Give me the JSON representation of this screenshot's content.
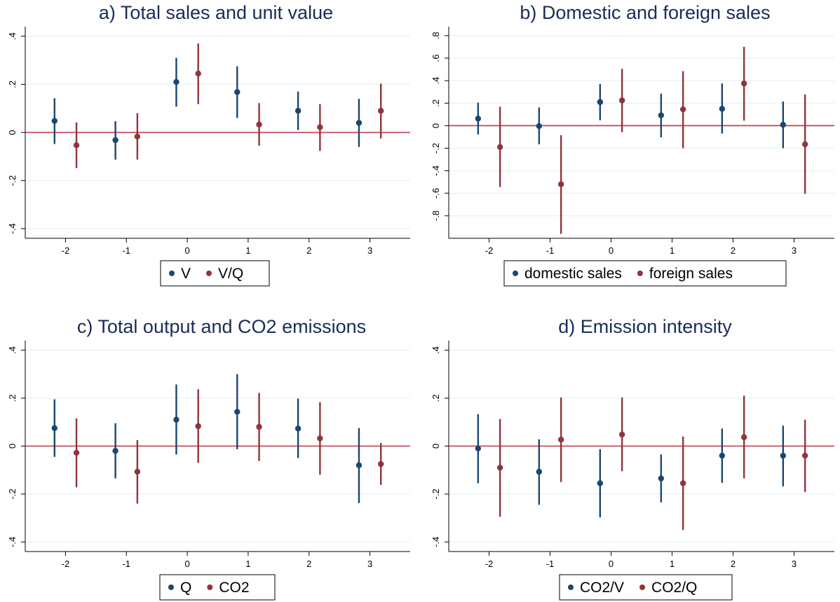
{
  "chart_data": [
    {
      "type": "scatter",
      "title": "a) Total sales and unit value",
      "xlabel": "",
      "ylabel": "",
      "x_ticks": [
        "-2",
        "-1",
        "0",
        "1",
        "2",
        "3"
      ],
      "y_ticks": [
        "-.4",
        "-.2",
        "0",
        ".2",
        ".4"
      ],
      "xlim": [
        -2.5,
        3.5
      ],
      "ylim": [
        -0.44,
        0.44
      ],
      "reference_line": 0,
      "grid": true,
      "legend_position": "bottom",
      "series": [
        {
          "name": "V",
          "color": "#1a476f",
          "points": [
            {
              "x": -2,
              "y": 0.048,
              "lo": -0.048,
              "hi": 0.142
            },
            {
              "x": -1,
              "y": -0.032,
              "lo": -0.113,
              "hi": 0.047
            },
            {
              "x": 0,
              "y": 0.21,
              "lo": 0.107,
              "hi": 0.31
            },
            {
              "x": 1,
              "y": 0.168,
              "lo": 0.06,
              "hi": 0.275
            },
            {
              "x": 2,
              "y": 0.09,
              "lo": 0.01,
              "hi": 0.17
            },
            {
              "x": 3,
              "y": 0.04,
              "lo": -0.06,
              "hi": 0.14
            }
          ]
        },
        {
          "name": "V/Q",
          "color": "#90353b",
          "points": [
            {
              "x": -2,
              "y": -0.053,
              "lo": -0.148,
              "hi": 0.042
            },
            {
              "x": -1,
              "y": -0.017,
              "lo": -0.113,
              "hi": 0.08
            },
            {
              "x": 0,
              "y": 0.245,
              "lo": 0.118,
              "hi": 0.37
            },
            {
              "x": 1,
              "y": 0.033,
              "lo": -0.055,
              "hi": 0.122
            },
            {
              "x": 2,
              "y": 0.022,
              "lo": -0.077,
              "hi": 0.118
            },
            {
              "x": 3,
              "y": 0.09,
              "lo": -0.025,
              "hi": 0.203
            }
          ]
        }
      ]
    },
    {
      "type": "scatter",
      "title": "b) Domestic and foreign sales",
      "xlabel": "",
      "ylabel": "",
      "x_ticks": [
        "-2",
        "-1",
        "0",
        "1",
        "2",
        "3"
      ],
      "y_ticks": [
        "-.8",
        "-.6",
        "-.4",
        "-.2",
        "0",
        ".2",
        ".4",
        ".6",
        ".8"
      ],
      "xlim": [
        -2.5,
        3.5
      ],
      "ylim": [
        -1.0,
        0.88
      ],
      "reference_line": 0,
      "grid": true,
      "legend_position": "bottom",
      "series": [
        {
          "name": "domestic sales",
          "color": "#1a476f",
          "points": [
            {
              "x": -2,
              "y": 0.063,
              "lo": -0.078,
              "hi": 0.205
            },
            {
              "x": -1,
              "y": -0.003,
              "lo": -0.165,
              "hi": 0.162
            },
            {
              "x": 0,
              "y": 0.21,
              "lo": 0.048,
              "hi": 0.37
            },
            {
              "x": 1,
              "y": 0.092,
              "lo": -0.103,
              "hi": 0.285
            },
            {
              "x": 2,
              "y": 0.15,
              "lo": -0.07,
              "hi": 0.375
            },
            {
              "x": 3,
              "y": 0.008,
              "lo": -0.2,
              "hi": 0.215
            }
          ]
        },
        {
          "name": "foreign sales",
          "color": "#90353b",
          "points": [
            {
              "x": -2,
              "y": -0.19,
              "lo": -0.545,
              "hi": 0.168
            },
            {
              "x": -1,
              "y": -0.52,
              "lo": -0.96,
              "hi": -0.085
            },
            {
              "x": 0,
              "y": 0.225,
              "lo": -0.058,
              "hi": 0.505
            },
            {
              "x": 1,
              "y": 0.145,
              "lo": -0.2,
              "hi": 0.485
            },
            {
              "x": 2,
              "y": 0.375,
              "lo": 0.045,
              "hi": 0.7
            },
            {
              "x": 3,
              "y": -0.165,
              "lo": -0.605,
              "hi": 0.278
            }
          ]
        }
      ]
    },
    {
      "type": "scatter",
      "title": "c) Total output and CO2 emissions",
      "xlabel": "",
      "ylabel": "",
      "x_ticks": [
        "-2",
        "-1",
        "0",
        "1",
        "2",
        "3"
      ],
      "y_ticks": [
        "-.4",
        "-.2",
        "0",
        ".2",
        ".4"
      ],
      "xlim": [
        -2.5,
        3.5
      ],
      "ylim": [
        -0.44,
        0.44
      ],
      "reference_line": 0,
      "grid": true,
      "legend_position": "bottom",
      "series": [
        {
          "name": "Q",
          "color": "#1a476f",
          "points": [
            {
              "x": -2,
              "y": 0.075,
              "lo": -0.045,
              "hi": 0.195
            },
            {
              "x": -1,
              "y": -0.02,
              "lo": -0.135,
              "hi": 0.095
            },
            {
              "x": 0,
              "y": 0.11,
              "lo": -0.035,
              "hi": 0.257
            },
            {
              "x": 1,
              "y": 0.143,
              "lo": -0.013,
              "hi": 0.3
            },
            {
              "x": 2,
              "y": 0.073,
              "lo": -0.05,
              "hi": 0.198
            },
            {
              "x": 3,
              "y": -0.08,
              "lo": -0.238,
              "hi": 0.075
            }
          ]
        },
        {
          "name": "CO2",
          "color": "#90353b",
          "points": [
            {
              "x": -2,
              "y": -0.028,
              "lo": -0.172,
              "hi": 0.115
            },
            {
              "x": -1,
              "y": -0.107,
              "lo": -0.24,
              "hi": 0.025
            },
            {
              "x": 0,
              "y": 0.083,
              "lo": -0.07,
              "hi": 0.237
            },
            {
              "x": 1,
              "y": 0.08,
              "lo": -0.062,
              "hi": 0.222
            },
            {
              "x": 2,
              "y": 0.032,
              "lo": -0.12,
              "hi": 0.183
            },
            {
              "x": 3,
              "y": -0.075,
              "lo": -0.162,
              "hi": 0.013
            }
          ]
        }
      ]
    },
    {
      "type": "scatter",
      "title": "d) Emission intensity",
      "xlabel": "",
      "ylabel": "",
      "x_ticks": [
        "-2",
        "-1",
        "0",
        "1",
        "2",
        "3"
      ],
      "y_ticks": [
        "-.4",
        "-.2",
        "0",
        ".2",
        ".4"
      ],
      "xlim": [
        -2.5,
        3.5
      ],
      "ylim": [
        -0.44,
        0.44
      ],
      "reference_line": 0,
      "grid": true,
      "legend_position": "bottom",
      "series": [
        {
          "name": "CO2/V",
          "color": "#1a476f",
          "points": [
            {
              "x": -2,
              "y": -0.01,
              "lo": -0.155,
              "hi": 0.133
            },
            {
              "x": -1,
              "y": -0.107,
              "lo": -0.245,
              "hi": 0.028
            },
            {
              "x": 0,
              "y": -0.155,
              "lo": -0.298,
              "hi": -0.013
            },
            {
              "x": 1,
              "y": -0.135,
              "lo": -0.235,
              "hi": -0.035
            },
            {
              "x": 2,
              "y": -0.04,
              "lo": -0.153,
              "hi": 0.073
            },
            {
              "x": 3,
              "y": -0.04,
              "lo": -0.168,
              "hi": 0.085
            }
          ]
        },
        {
          "name": "CO2/Q",
          "color": "#90353b",
          "points": [
            {
              "x": -2,
              "y": -0.09,
              "lo": -0.295,
              "hi": 0.113
            },
            {
              "x": -1,
              "y": 0.027,
              "lo": -0.15,
              "hi": 0.203
            },
            {
              "x": 0,
              "y": 0.048,
              "lo": -0.105,
              "hi": 0.203
            },
            {
              "x": 1,
              "y": -0.155,
              "lo": -0.35,
              "hi": 0.04
            },
            {
              "x": 2,
              "y": 0.037,
              "lo": -0.135,
              "hi": 0.21
            },
            {
              "x": 3,
              "y": -0.04,
              "lo": -0.192,
              "hi": 0.11
            }
          ]
        }
      ]
    }
  ]
}
